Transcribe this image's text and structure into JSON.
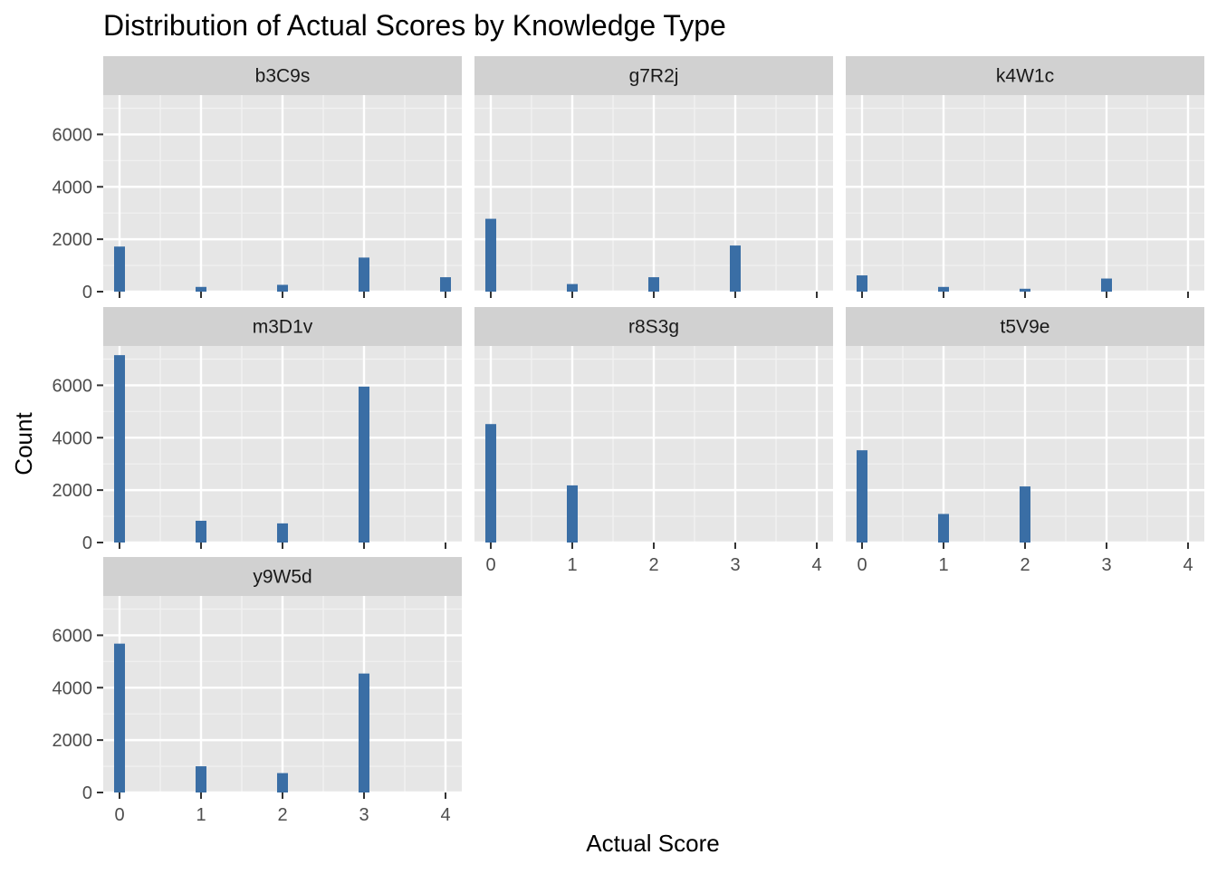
{
  "chart_data": {
    "type": "bar",
    "title": "Distribution of Actual Scores by Knowledge Type",
    "xlabel": "Actual Score",
    "ylabel": "Count",
    "x_ticks": [
      0,
      1,
      2,
      3,
      4
    ],
    "y_ticks": [
      0,
      2000,
      4000,
      6000
    ],
    "xlim": [
      -0.2,
      4.2
    ],
    "ylim": [
      0,
      7500
    ],
    "grid": true,
    "facet_layout": {
      "columns": 3,
      "rows": 3
    },
    "colors": {
      "bar": "#3a6ea5",
      "panel_background": "#e6e6e6",
      "strip_background": "#d1d1d1",
      "grid_major": "#ffffff",
      "grid_minor": "#f2f2f2"
    },
    "panels": [
      {
        "name": "b3C9s",
        "x": [
          0,
          1,
          2,
          3,
          4
        ],
        "values": [
          1720,
          180,
          260,
          1300,
          550
        ]
      },
      {
        "name": "g7R2j",
        "x": [
          0,
          1,
          2,
          3,
          4
        ],
        "values": [
          2780,
          290,
          550,
          1760,
          0
        ]
      },
      {
        "name": "k4W1c",
        "x": [
          0,
          1,
          2,
          3,
          4
        ],
        "values": [
          620,
          180,
          110,
          500,
          0
        ]
      },
      {
        "name": "m3D1v",
        "x": [
          0,
          1,
          2,
          3,
          4
        ],
        "values": [
          7150,
          830,
          730,
          5950,
          0
        ]
      },
      {
        "name": "r8S3g",
        "x": [
          0,
          1,
          2,
          3,
          4
        ],
        "values": [
          4520,
          2180,
          0,
          0,
          0
        ]
      },
      {
        "name": "t5V9e",
        "x": [
          0,
          1,
          2,
          3,
          4
        ],
        "values": [
          3520,
          1090,
          2140,
          0,
          0
        ]
      },
      {
        "name": "y9W5d",
        "x": [
          0,
          1,
          2,
          3,
          4
        ],
        "values": [
          5680,
          1000,
          740,
          4540,
          0
        ]
      }
    ]
  }
}
